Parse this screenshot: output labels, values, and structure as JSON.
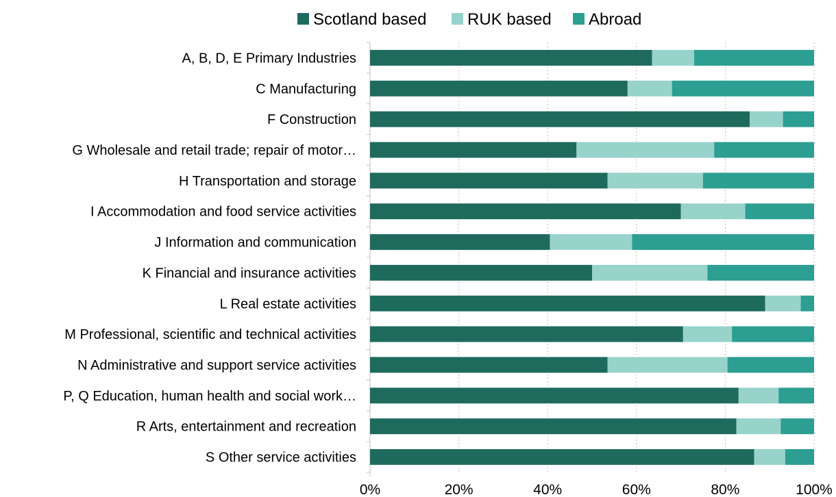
{
  "chart_data": {
    "type": "bar",
    "orientation": "horizontal",
    "stacked": true,
    "percent_stacked": true,
    "categories": [
      "A, B, D, E Primary Industries",
      "C Manufacturing",
      "F Construction",
      "G Wholesale and retail trade; repair of motor…",
      "H Transportation and storage",
      "I Accommodation and food service activities",
      "J Information and communication",
      "K Financial and insurance activities",
      "L Real estate activities",
      "M Professional, scientific and technical activities",
      "N Administrative and support service activities",
      "P, Q Education, human health and social work…",
      "R Arts, entertainment and recreation",
      "S Other service activities"
    ],
    "series": [
      {
        "name": "Scotland based",
        "color": "#1e6b5e",
        "values": [
          63.5,
          58.0,
          85.5,
          46.5,
          53.5,
          70.0,
          40.5,
          50.0,
          89.0,
          70.5,
          53.5,
          83.0,
          82.5,
          86.5
        ]
      },
      {
        "name": "RUK based",
        "color": "#98d3cb",
        "values": [
          9.5,
          10.0,
          7.5,
          31.0,
          21.5,
          14.5,
          18.5,
          26.0,
          8.0,
          11.0,
          27.0,
          9.0,
          10.0,
          7.0
        ]
      },
      {
        "name": "Abroad",
        "color": "#2c9e92",
        "values": [
          27.0,
          32.0,
          7.0,
          22.5,
          25.0,
          15.5,
          41.0,
          24.0,
          3.0,
          18.5,
          19.5,
          8.0,
          7.5,
          6.5
        ]
      }
    ],
    "xlim": [
      0,
      100
    ],
    "x_ticks": [
      "0%",
      "20%",
      "40%",
      "60%",
      "80%",
      "100%"
    ],
    "x_tick_values": [
      0,
      20,
      40,
      60,
      80,
      100
    ],
    "grid": "vertical",
    "legend_position": "top"
  }
}
